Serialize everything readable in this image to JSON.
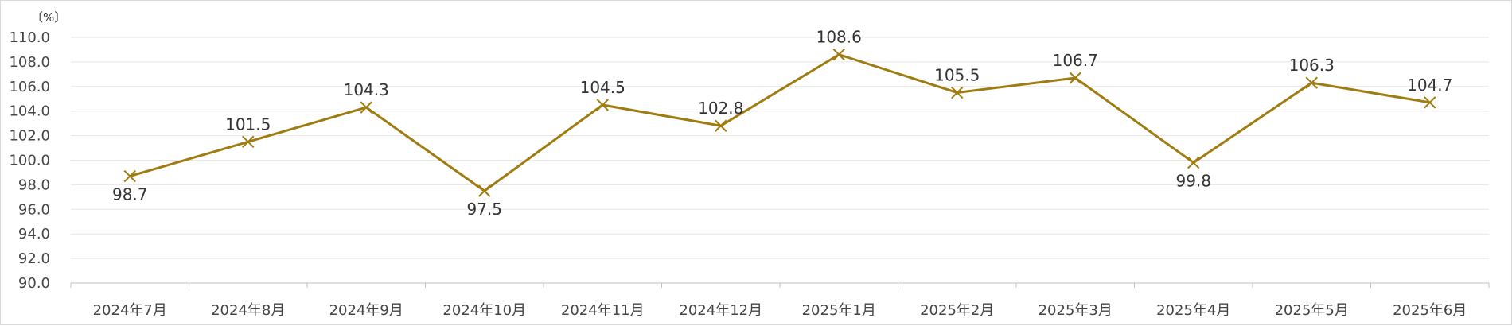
{
  "chart_data": {
    "type": "line",
    "unit_label": "〔%〕",
    "categories": [
      "2024年7月",
      "2024年8月",
      "2024年9月",
      "2024年10月",
      "2024年11月",
      "2024年12月",
      "2025年1月",
      "2025年2月",
      "2025年3月",
      "2025年4月",
      "2025年5月",
      "2025年6月"
    ],
    "series": [
      {
        "values": [
          98.7,
          101.5,
          104.3,
          97.5,
          104.5,
          102.8,
          108.6,
          105.5,
          106.7,
          99.8,
          106.3,
          104.7
        ]
      }
    ],
    "data_label_positions": [
      "below",
      "above",
      "above",
      "below",
      "above",
      "above",
      "above",
      "above",
      "above",
      "below",
      "above",
      "above"
    ],
    "ylim": [
      90.0,
      110.0
    ],
    "y_ticks": [
      "90.0",
      "92.0",
      "94.0",
      "96.0",
      "98.0",
      "100.0",
      "102.0",
      "104.0",
      "106.0",
      "108.0",
      "110.0"
    ],
    "grid": true,
    "marker": "x",
    "line_color": "#A07C10",
    "title": "",
    "xlabel": "",
    "ylabel": ""
  }
}
